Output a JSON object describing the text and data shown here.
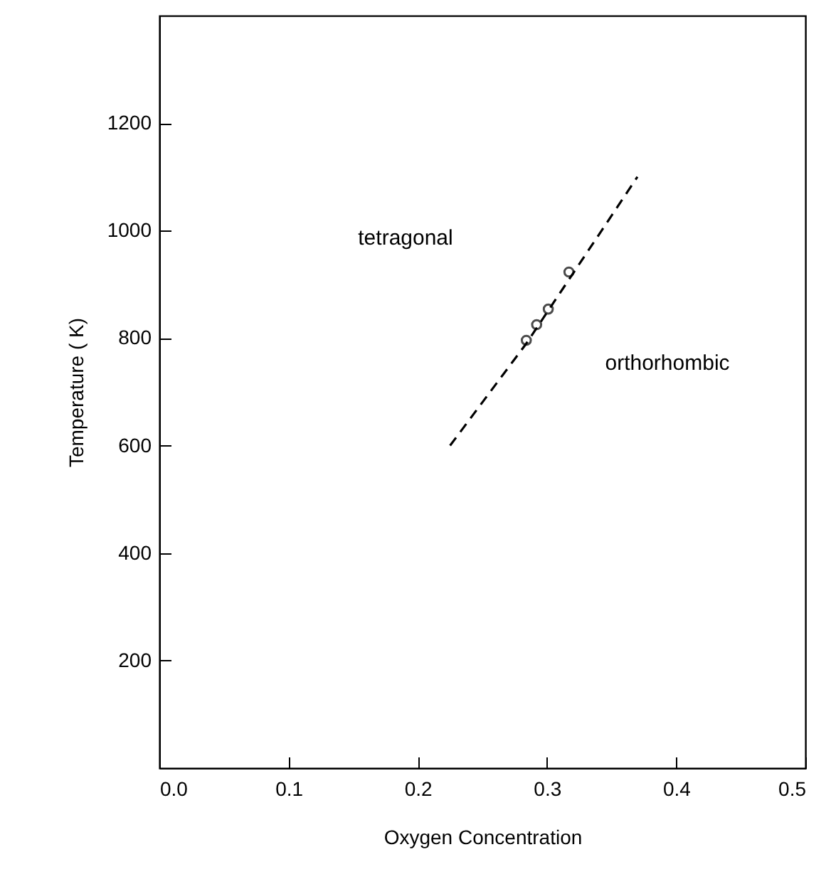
{
  "chart_data": {
    "type": "scatter",
    "xlabel": "Oxygen Concentration",
    "ylabel": "Temperature ( K)",
    "xlim": [
      0,
      0.5
    ],
    "ylim": [
      0,
      1400
    ],
    "xticks": [
      {
        "value": 0,
        "label": "0.0"
      },
      0.1,
      0.2,
      0.3,
      0.4,
      0.5
    ],
    "yticks": [
      200,
      400,
      600,
      800,
      1000,
      1200
    ],
    "grid": false,
    "series": [
      {
        "type": "line",
        "color": "#000000",
        "line_style": "dashed",
        "marker": "none",
        "x": [
          0.225,
          0.284,
          0.37
        ],
        "values": [
          600,
          790,
          1100
        ]
      },
      {
        "color": "#000000",
        "marker": "circle",
        "x": [
          0.284,
          0.292,
          0.301,
          0.317
        ],
        "values": [
          796,
          825,
          854,
          923
        ]
      }
    ],
    "annotations": [
      "tetragonal",
      "orthorhombic"
    ]
  }
}
